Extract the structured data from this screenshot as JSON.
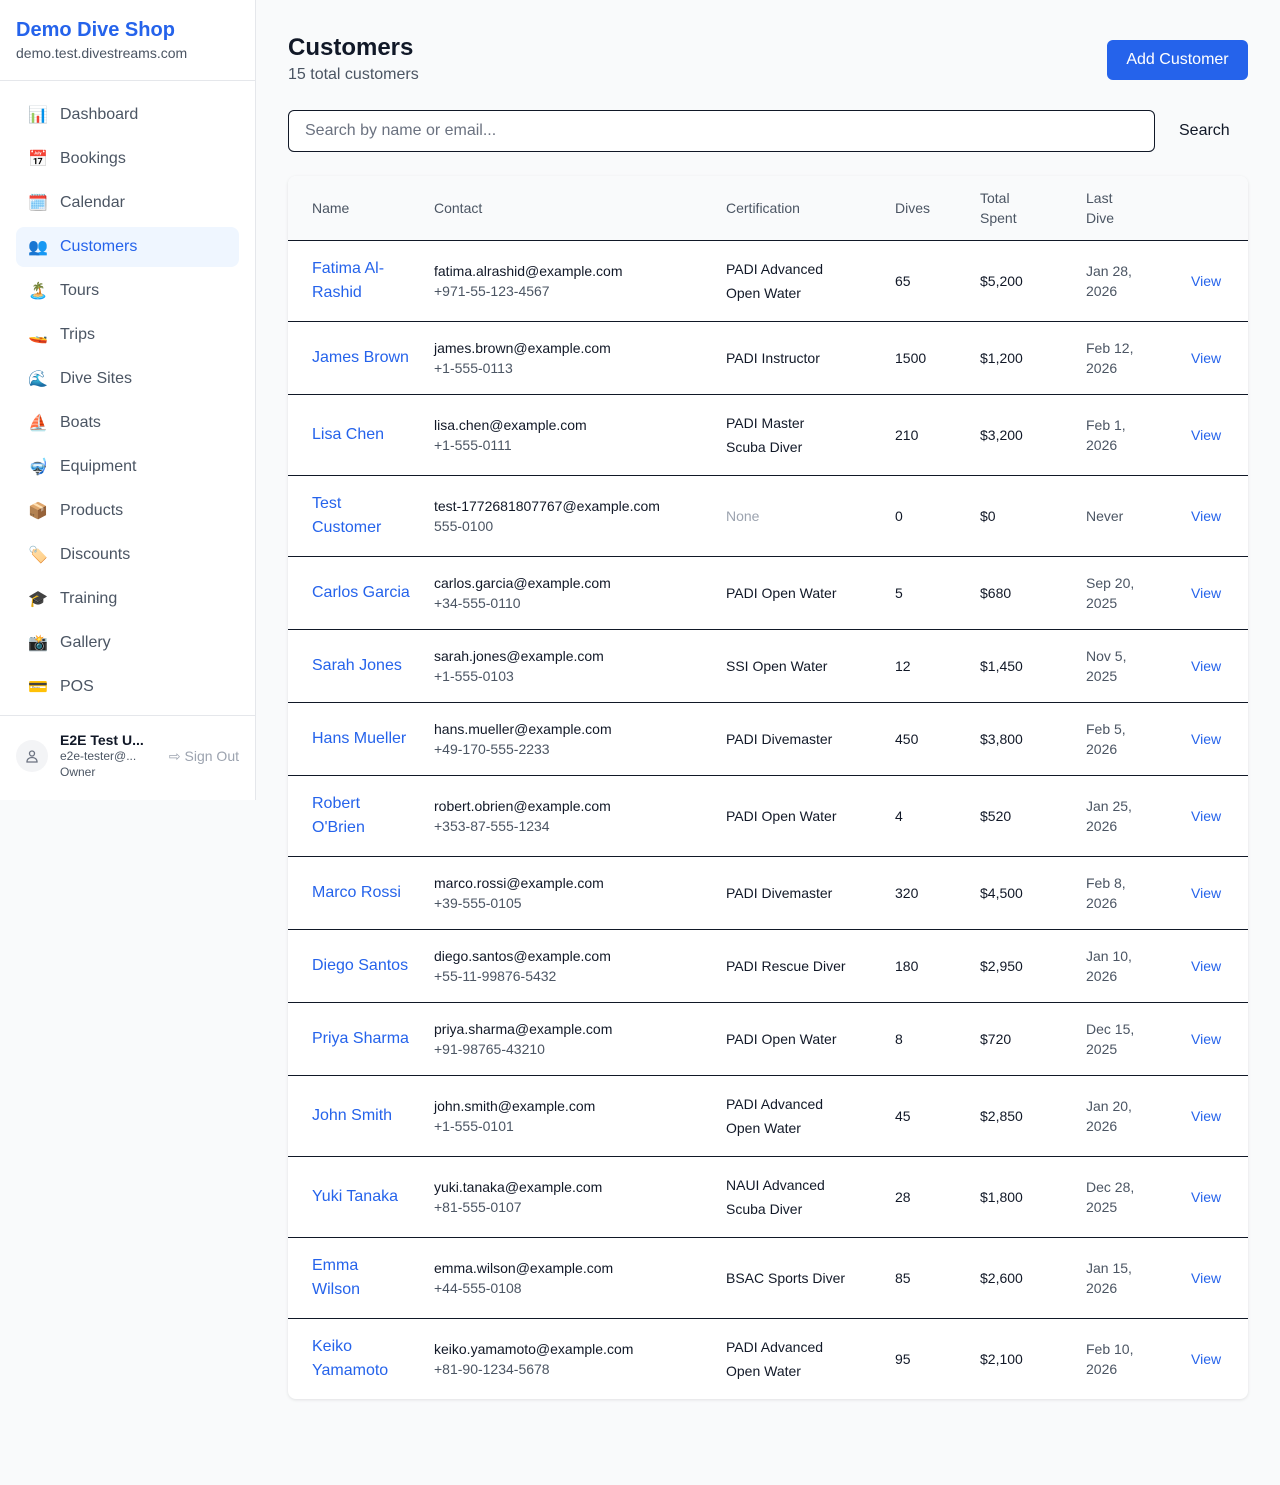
{
  "sidebar": {
    "shop_name": "Demo Dive Shop",
    "domain": "demo.test.divestreams.com",
    "items": [
      {
        "label": "Dashboard",
        "icon": "📊",
        "icon_name": "bar-chart-icon"
      },
      {
        "label": "Bookings",
        "icon": "📅",
        "icon_name": "calendar-date-icon"
      },
      {
        "label": "Calendar",
        "icon": "🗓️",
        "icon_name": "spiral-calendar-icon"
      },
      {
        "label": "Customers",
        "icon": "👥",
        "icon_name": "users-icon",
        "active": true
      },
      {
        "label": "Tours",
        "icon": "🏝️",
        "icon_name": "island-icon"
      },
      {
        "label": "Trips",
        "icon": "🚤",
        "icon_name": "speedboat-icon"
      },
      {
        "label": "Dive Sites",
        "icon": "🌊",
        "icon_name": "wave-icon"
      },
      {
        "label": "Boats",
        "icon": "⛵",
        "icon_name": "sailboat-icon"
      },
      {
        "label": "Equipment",
        "icon": "🤿",
        "icon_name": "diving-mask-icon"
      },
      {
        "label": "Products",
        "icon": "📦",
        "icon_name": "package-icon"
      },
      {
        "label": "Discounts",
        "icon": "🏷️",
        "icon_name": "tag-icon"
      },
      {
        "label": "Training",
        "icon": "🎓",
        "icon_name": "graduation-cap-icon"
      },
      {
        "label": "Gallery",
        "icon": "📸",
        "icon_name": "camera-icon"
      },
      {
        "label": "POS",
        "icon": "💳",
        "icon_name": "credit-card-icon"
      }
    ],
    "user": {
      "name": "E2E Test U...",
      "email": "e2e-tester@...",
      "role": "Owner",
      "sign_out": "Sign Out"
    }
  },
  "header": {
    "title": "Customers",
    "subtitle": "15 total customers",
    "add_button": "Add Customer"
  },
  "search": {
    "placeholder": "Search by name or email...",
    "value": "",
    "button": "Search"
  },
  "table": {
    "headers": [
      "Name",
      "Contact",
      "Certification",
      "Dives",
      "Total Spent",
      "Last Dive",
      ""
    ],
    "rows": [
      {
        "name": "Fatima Al-Rashid",
        "email": "fatima.alrashid@example.com",
        "phone": "+971-55-123-4567",
        "cert": "PADI Advanced Open Water",
        "dives": "65",
        "spent": "$5,200",
        "last": "Jan 28, 2026",
        "action": "View"
      },
      {
        "name": "James Brown",
        "email": "james.brown@example.com",
        "phone": "+1-555-0113",
        "cert": "PADI Instructor",
        "dives": "1500",
        "spent": "$1,200",
        "last": "Feb 12, 2026",
        "action": "View"
      },
      {
        "name": "Lisa Chen",
        "email": "lisa.chen@example.com",
        "phone": "+1-555-0111",
        "cert": "PADI Master Scuba Diver",
        "dives": "210",
        "spent": "$3,200",
        "last": "Feb 1, 2026",
        "action": "View"
      },
      {
        "name": "Test Customer",
        "email": "test-1772681807767@example.com",
        "phone": "555-0100",
        "cert": "None",
        "dives": "0",
        "spent": "$0",
        "last": "Never",
        "action": "View"
      },
      {
        "name": "Carlos Garcia",
        "email": "carlos.garcia@example.com",
        "phone": "+34-555-0110",
        "cert": "PADI Open Water",
        "dives": "5",
        "spent": "$680",
        "last": "Sep 20, 2025",
        "action": "View"
      },
      {
        "name": "Sarah Jones",
        "email": "sarah.jones@example.com",
        "phone": "+1-555-0103",
        "cert": "SSI Open Water",
        "dives": "12",
        "spent": "$1,450",
        "last": "Nov 5, 2025",
        "action": "View"
      },
      {
        "name": "Hans Mueller",
        "email": "hans.mueller@example.com",
        "phone": "+49-170-555-2233",
        "cert": "PADI Divemaster",
        "dives": "450",
        "spent": "$3,800",
        "last": "Feb 5, 2026",
        "action": "View"
      },
      {
        "name": "Robert O'Brien",
        "email": "robert.obrien@example.com",
        "phone": "+353-87-555-1234",
        "cert": "PADI Open Water",
        "dives": "4",
        "spent": "$520",
        "last": "Jan 25, 2026",
        "action": "View"
      },
      {
        "name": "Marco Rossi",
        "email": "marco.rossi@example.com",
        "phone": "+39-555-0105",
        "cert": "PADI Divemaster",
        "dives": "320",
        "spent": "$4,500",
        "last": "Feb 8, 2026",
        "action": "View"
      },
      {
        "name": "Diego Santos",
        "email": "diego.santos@example.com",
        "phone": "+55-11-99876-5432",
        "cert": "PADI Rescue Diver",
        "dives": "180",
        "spent": "$2,950",
        "last": "Jan 10, 2026",
        "action": "View"
      },
      {
        "name": "Priya Sharma",
        "email": "priya.sharma@example.com",
        "phone": "+91-98765-43210",
        "cert": "PADI Open Water",
        "dives": "8",
        "spent": "$720",
        "last": "Dec 15, 2025",
        "action": "View"
      },
      {
        "name": "John Smith",
        "email": "john.smith@example.com",
        "phone": "+1-555-0101",
        "cert": "PADI Advanced Open Water",
        "dives": "45",
        "spent": "$2,850",
        "last": "Jan 20, 2026",
        "action": "View"
      },
      {
        "name": "Yuki Tanaka",
        "email": "yuki.tanaka@example.com",
        "phone": "+81-555-0107",
        "cert": "NAUI Advanced Scuba Diver",
        "dives": "28",
        "spent": "$1,800",
        "last": "Dec 28, 2025",
        "action": "View"
      },
      {
        "name": "Emma Wilson",
        "email": "emma.wilson@example.com",
        "phone": "+44-555-0108",
        "cert": "BSAC Sports Diver",
        "dives": "85",
        "spent": "$2,600",
        "last": "Jan 15, 2026",
        "action": "View"
      },
      {
        "name": "Keiko Yamamoto",
        "email": "keiko.yamamoto@example.com",
        "phone": "+81-90-1234-5678",
        "cert": "PADI Advanced Open Water",
        "dives": "95",
        "spent": "$2,100",
        "last": "Feb 10, 2026",
        "action": "View"
      }
    ]
  },
  "colors": {
    "accent": "#2563eb",
    "active_bg": "#eff6ff"
  }
}
